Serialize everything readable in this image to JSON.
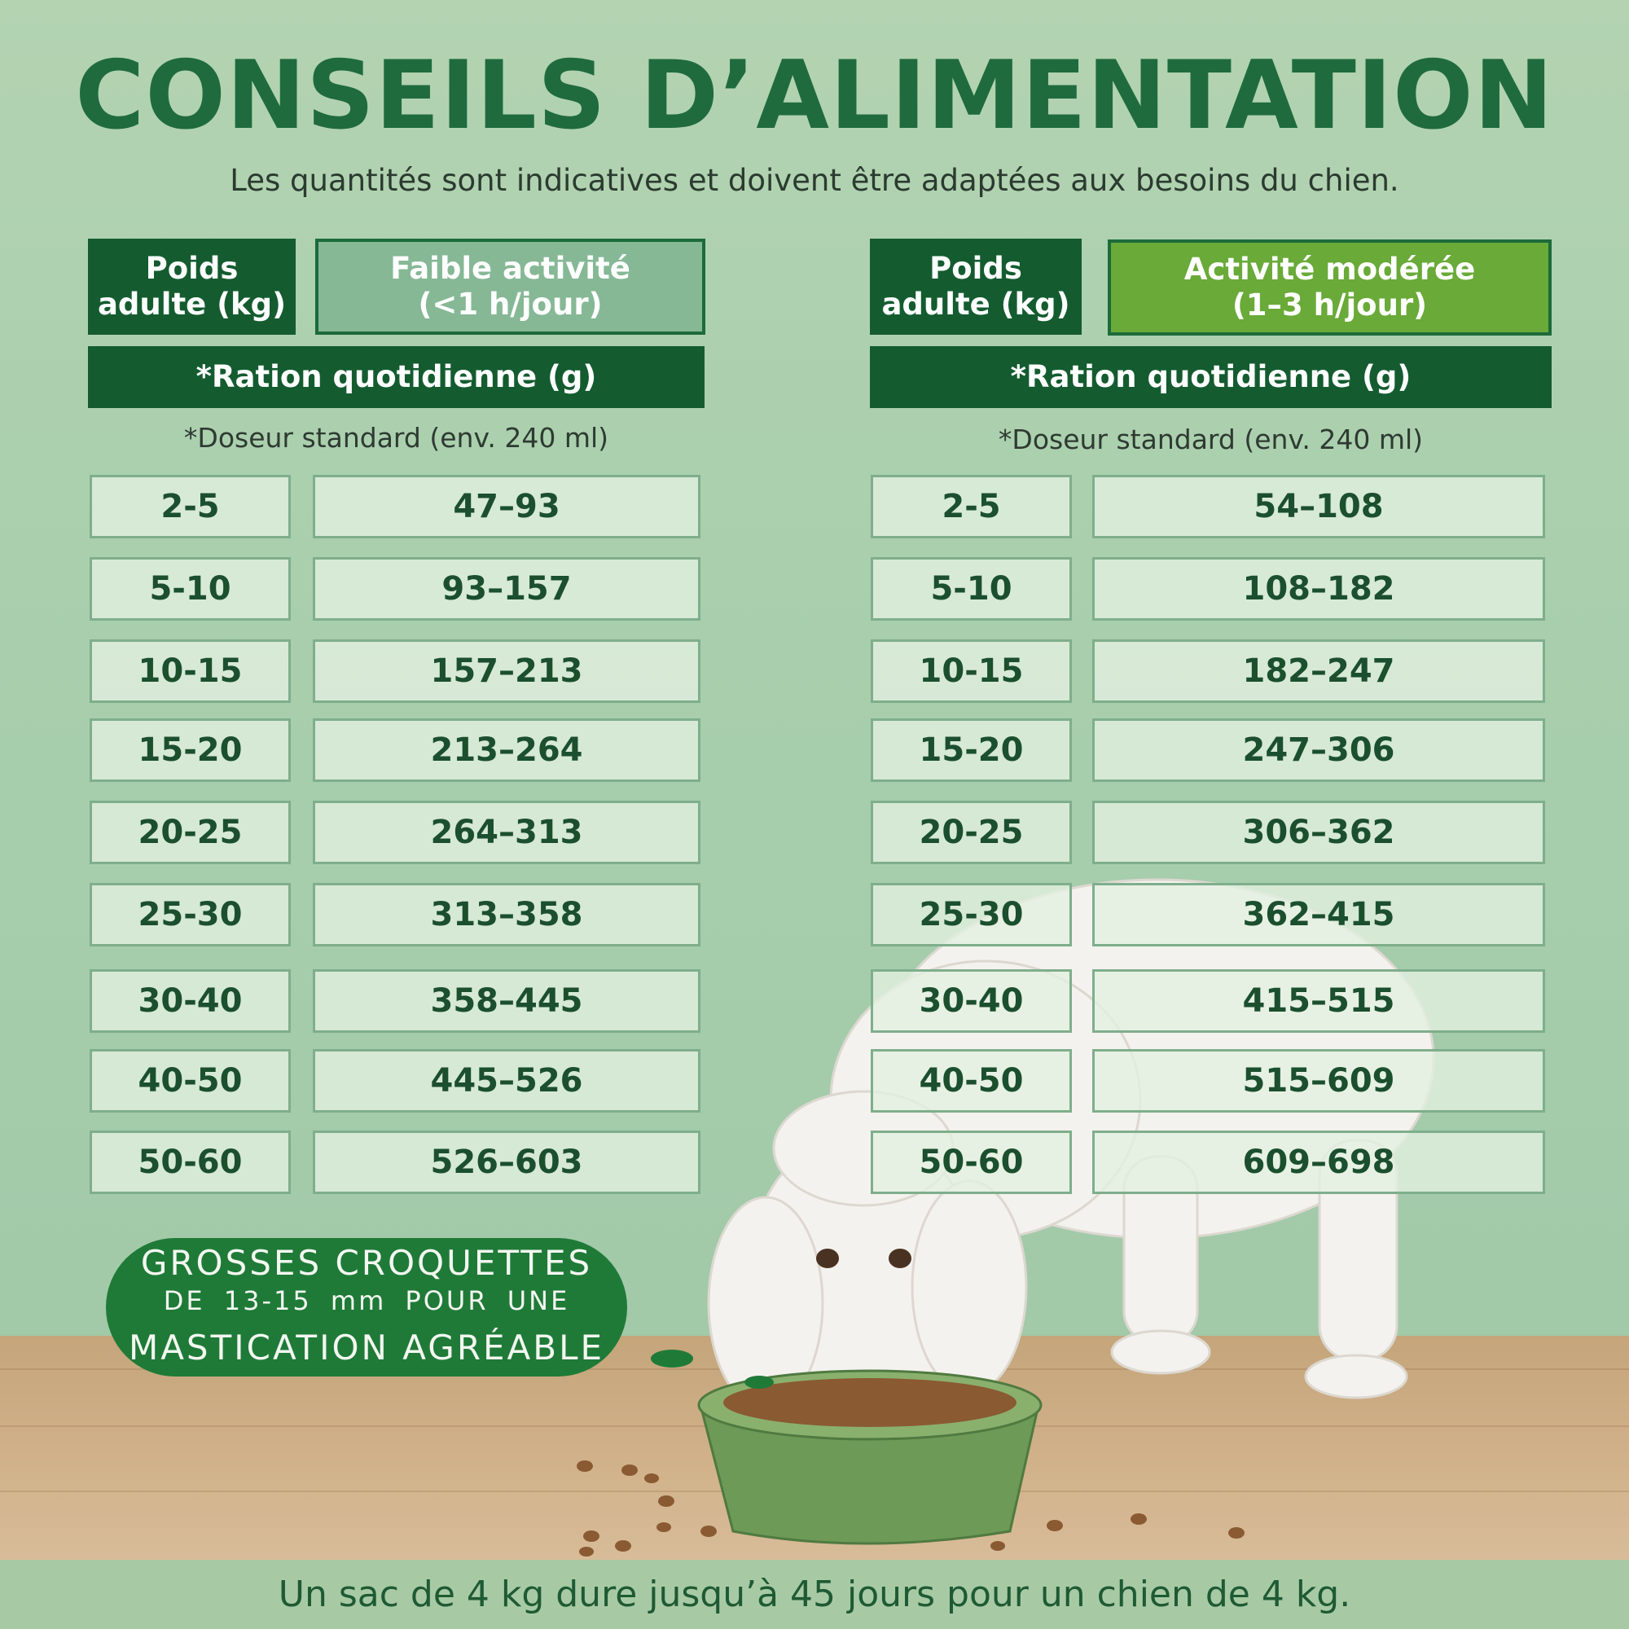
{
  "title": "CONSEILS D’ALIMENTATION",
  "subtitle": "Les quantités sont indicatives et doivent être adaptées aux besoins du chien.",
  "tables": [
    {
      "weight_header": [
        "Poids",
        "adulte (kg)"
      ],
      "activity_header": [
        "Faible activité",
        "(<1 h/jour)"
      ],
      "ration_header": "*Ration quotidienne (g)",
      "doseur_note": "*Doseur standard (env. 240 ml)",
      "rows": [
        {
          "weight": "2-5",
          "ration": "47–93"
        },
        {
          "weight": "5-10",
          "ration": "93–157"
        },
        {
          "weight": "10-15",
          "ration": "157–213"
        },
        {
          "weight": "15-20",
          "ration": "213–264"
        },
        {
          "weight": "20-25",
          "ration": "264–313"
        },
        {
          "weight": "25-30",
          "ration": "313–358"
        },
        {
          "weight": "30-40",
          "ration": "358–445"
        },
        {
          "weight": "40-50",
          "ration": "445–526"
        },
        {
          "weight": "50-60",
          "ration": "526–603"
        }
      ]
    },
    {
      "weight_header": [
        "Poids",
        "adulte (kg)"
      ],
      "activity_header": [
        "Activité modérée",
        "(1–3 h/jour)"
      ],
      "ration_header": "*Ration quotidienne (g)",
      "doseur_note": "*Doseur standard (env. 240 ml)",
      "rows": [
        {
          "weight": "2-5",
          "ration": "54–108"
        },
        {
          "weight": "5-10",
          "ration": "108–182"
        },
        {
          "weight": "10-15",
          "ration": "182–247"
        },
        {
          "weight": "15-20",
          "ration": "247–306"
        },
        {
          "weight": "20-25",
          "ration": "306–362"
        },
        {
          "weight": "25-30",
          "ration": "362–415"
        },
        {
          "weight": "30-40",
          "ration": "415–515"
        },
        {
          "weight": "40-50",
          "ration": "515–609"
        },
        {
          "weight": "50-60",
          "ration": "609–698"
        }
      ]
    }
  ],
  "badge": {
    "line1": "GROSSES CROQUETTES",
    "line2": "DE 13-15 mm POUR UNE",
    "line3": "MASTICATION AGRÉABLE"
  },
  "footer": "Un sac de 4 kg dure jusqu’à 45 jours pour un chien de 4 kg.",
  "colors": {
    "title": "#1f6b3e",
    "header_dark": "#145c30",
    "header_low_activity": "#86b896",
    "header_moderate_activity": "#69aa38",
    "badge": "#1f7a38"
  },
  "illustration": [
    "poodle-dog",
    "green-food-bowl",
    "kibble"
  ]
}
